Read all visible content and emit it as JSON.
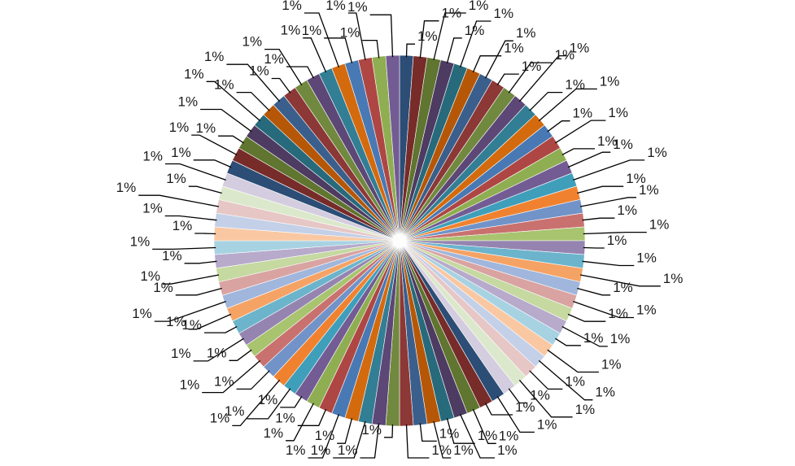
{
  "chart_data": {
    "type": "pie",
    "title": "",
    "slice_count": 84,
    "values": [
      1,
      1,
      1,
      1,
      1,
      1,
      1,
      1,
      1,
      1,
      1,
      1,
      1,
      1,
      1,
      1,
      1,
      1,
      1,
      1,
      1,
      1,
      1,
      1,
      1,
      1,
      1,
      1,
      1,
      1,
      1,
      1,
      1,
      1,
      1,
      1,
      1,
      1,
      1,
      1,
      1,
      1,
      1,
      1,
      1,
      1,
      1,
      1,
      1,
      1,
      1,
      1,
      1,
      1,
      1,
      1,
      1,
      1,
      1,
      1,
      1,
      1,
      1,
      1,
      1,
      1,
      1,
      1,
      1,
      1,
      1,
      1,
      1,
      1,
      1,
      1,
      1,
      1,
      1,
      1,
      1,
      1,
      1,
      1
    ],
    "data_label": "1%",
    "legend": "none",
    "start_angle": "12 o'clock",
    "direction": "clockwise"
  },
  "palette": [
    "#2C4D75",
    "#772C2A",
    "#5F7530",
    "#4D3B62",
    "#276A7C",
    "#B65708",
    "#3A5F8C",
    "#8C3836",
    "#71893F",
    "#5C4776",
    "#327E94",
    "#D46A0E",
    "#4979B4",
    "#AE4744",
    "#8FAE52",
    "#735C94",
    "#3F9FBB",
    "#F0822F",
    "#7193C8",
    "#C9716F",
    "#A8C46F",
    "#9584B0",
    "#6BB4CC",
    "#F5A365",
    "#A0B6DC",
    "#D9A3A2",
    "#C5D9A0",
    "#B7AACB",
    "#A7D2E2",
    "#F9C8A3",
    "#C3D0E8",
    "#E6C7C6",
    "#DCE8CB",
    "#D4CDDF"
  ]
}
